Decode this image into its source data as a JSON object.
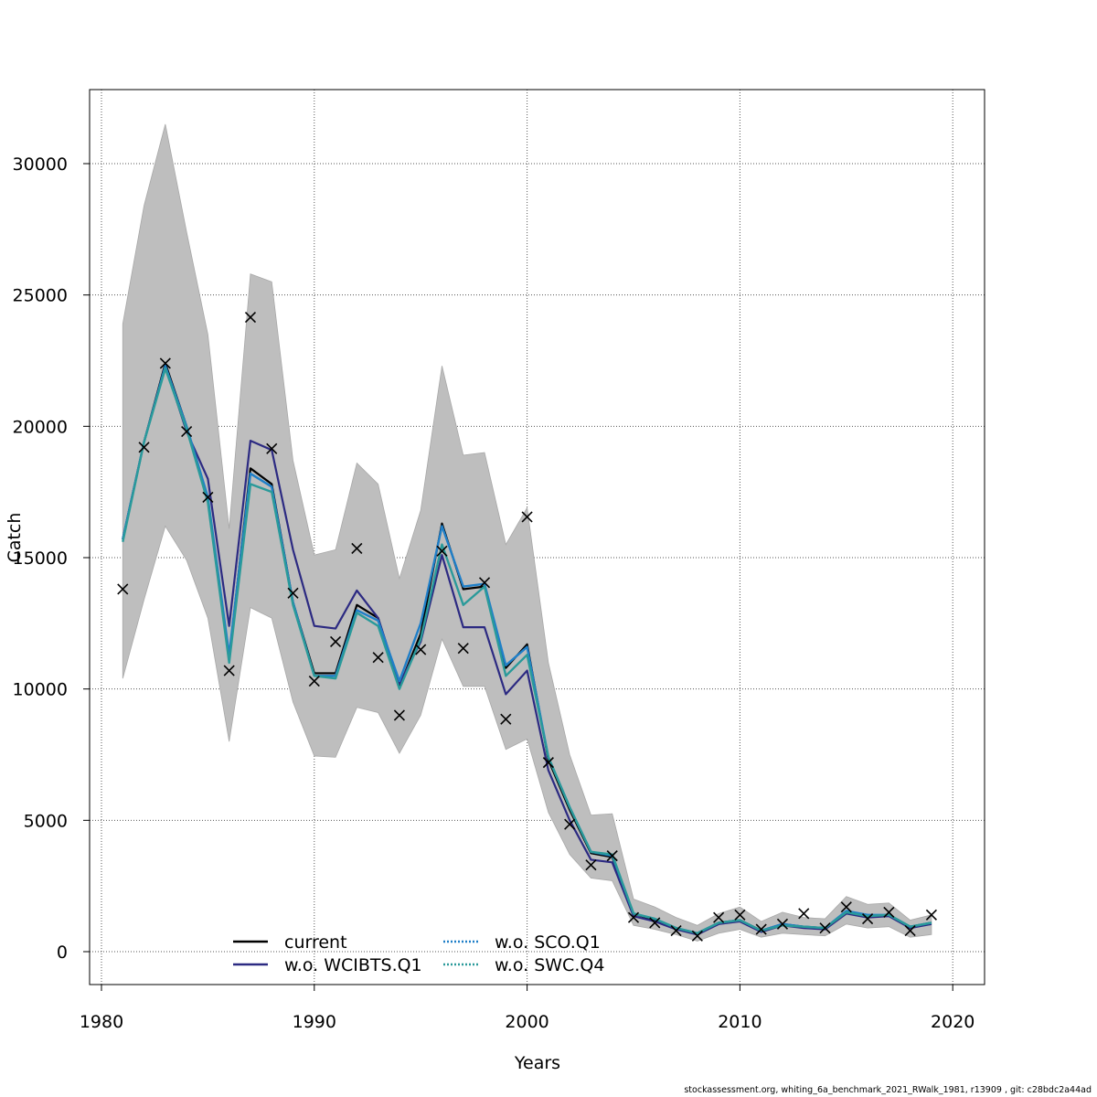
{
  "chart_data": {
    "type": "line",
    "xlabel": "Years",
    "ylabel": "Catch",
    "xlim": [
      1980,
      2021
    ],
    "ylim": [
      0,
      32000
    ],
    "x_ticks": [
      "1980",
      "1990",
      "2000",
      "2010",
      "2020"
    ],
    "y_ticks": [
      "0",
      "5000",
      "10000",
      "15000",
      "20000",
      "25000",
      "30000"
    ],
    "grid": true,
    "legend_position": "bottom-center",
    "years": [
      1981,
      1982,
      1983,
      1984,
      1985,
      1986,
      1987,
      1988,
      1989,
      1990,
      1991,
      1992,
      1993,
      1994,
      1995,
      1996,
      1997,
      1998,
      1999,
      2000,
      2001,
      2002,
      2003,
      2004,
      2005,
      2006,
      2007,
      2008,
      2009,
      2010,
      2011,
      2012,
      2013,
      2014,
      2015,
      2016,
      2017,
      2018,
      2019
    ],
    "confidence_band": {
      "color": "#bebebe",
      "upper": [
        23900,
        28400,
        31500,
        27400,
        23500,
        16100,
        25800,
        25500,
        18700,
        15100,
        15300,
        18600,
        17800,
        14200,
        16800,
        22300,
        18900,
        19000,
        15500,
        16900,
        11000,
        7500,
        5200,
        5250,
        2000,
        1700,
        1300,
        1000,
        1450,
        1700,
        1150,
        1500,
        1300,
        1250,
        2100,
        1800,
        1850,
        1200,
        1400
      ],
      "lower": [
        10400,
        13400,
        16200,
        14900,
        12700,
        8000,
        13100,
        12700,
        9500,
        7450,
        7400,
        9300,
        9100,
        7550,
        9000,
        11900,
        10100,
        10100,
        7700,
        8100,
        5300,
        3700,
        2800,
        2700,
        1000,
        850,
        650,
        400,
        700,
        850,
        550,
        700,
        650,
        600,
        1050,
        900,
        950,
        550,
        650
      ]
    },
    "observed": {
      "marker": "×",
      "values": [
        13800,
        19200,
        22400,
        19800,
        17300,
        10700,
        24150,
        19150,
        13650,
        10300,
        11800,
        15350,
        11200,
        9000,
        11500,
        15250,
        11550,
        14050,
        8850,
        16550,
        7200,
        4850,
        3300,
        3650,
        1300,
        1100,
        800,
        600,
        1300,
        1400,
        850,
        1050,
        1450,
        900,
        1700,
        1250,
        1500,
        800,
        1400
      ]
    },
    "series": [
      {
        "name": "current",
        "color": "#000000",
        "dash": "solid",
        "values": [
          15700,
          19400,
          22400,
          20000,
          17200,
          11200,
          18400,
          17800,
          13300,
          10600,
          10600,
          13200,
          12700,
          10100,
          12100,
          16300,
          13800,
          13900,
          10800,
          11700,
          7300,
          5400,
          3750,
          3600,
          1450,
          1200,
          900,
          700,
          1100,
          1200,
          800,
          1050,
          950,
          900,
          1500,
          1350,
          1400,
          950,
          1100
        ]
      },
      {
        "name": "w.o. WCIBTS.Q1",
        "color": "#2c2a82",
        "dash": "solid",
        "values": [
          15700,
          19400,
          22300,
          19800,
          18000,
          12400,
          19450,
          19100,
          15300,
          12400,
          12300,
          13750,
          12700,
          10200,
          11800,
          15100,
          12350,
          12350,
          9800,
          10700,
          6900,
          5000,
          3500,
          3400,
          1350,
          1150,
          850,
          650,
          1050,
          1150,
          750,
          1000,
          900,
          850,
          1450,
          1300,
          1350,
          900,
          1050
        ]
      },
      {
        "name": "w.o. SCO.Q1",
        "color": "#1f7fc8",
        "dash": "dotted",
        "values": [
          15700,
          19400,
          22300,
          20000,
          17300,
          11300,
          18200,
          17700,
          13300,
          10500,
          10500,
          13000,
          12600,
          10300,
          12500,
          16200,
          13900,
          14000,
          10900,
          11600,
          7400,
          5500,
          3800,
          3650,
          1450,
          1250,
          900,
          700,
          1100,
          1200,
          800,
          1050,
          950,
          900,
          1550,
          1400,
          1400,
          950,
          1100
        ]
      },
      {
        "name": "w.o. SWC.Q4",
        "color": "#2a9a9a",
        "dash": "dotted",
        "values": [
          15600,
          19400,
          22200,
          19900,
          17100,
          11000,
          17800,
          17500,
          13200,
          10500,
          10400,
          12900,
          12400,
          10000,
          11900,
          15500,
          13200,
          13900,
          10500,
          11300,
          7400,
          5500,
          3800,
          3700,
          1450,
          1250,
          900,
          700,
          1100,
          1200,
          800,
          1000,
          950,
          900,
          1500,
          1350,
          1400,
          950,
          1100
        ]
      }
    ]
  },
  "footer": "stockassessment.org, whiting_6a_benchmark_2021_RWalk_1981, r13909 , git: c28bdc2a44ad"
}
